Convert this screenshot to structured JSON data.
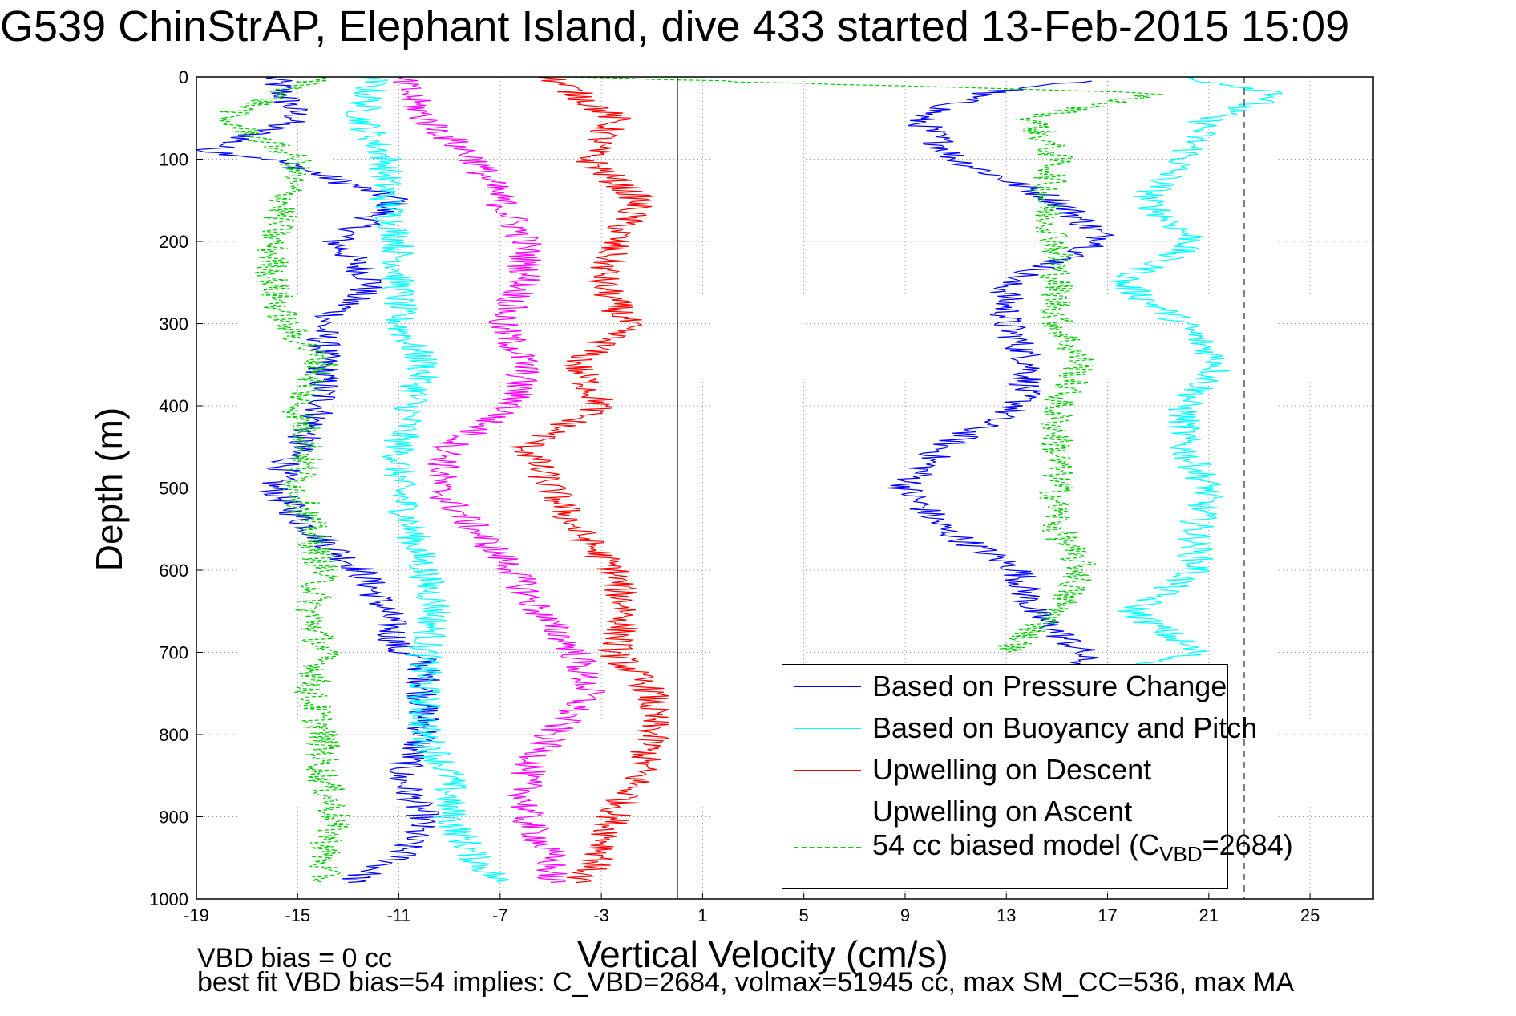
{
  "title": "G539 ChinStrAP, Elephant Island, dive 433 started 13-Feb-2015 15:09",
  "footnote_1": "VBD bias = 0 cc",
  "footnote_2": "best fit VBD bias=54 implies: C_VBD=2684, volmax=51945 cc, max SM_CC=536, max MA",
  "chart_data": {
    "type": "line",
    "xlabel": "Vertical Velocity (cm/s)",
    "ylabel": "Depth (m)",
    "xlim": [
      -19,
      27.5
    ],
    "ylim": [
      1000,
      0
    ],
    "y_inverted": true,
    "x_ticks": [
      -19,
      -15,
      -11,
      -7,
      -3,
      1,
      5,
      9,
      13,
      17,
      21,
      25
    ],
    "y_ticks": [
      0,
      100,
      200,
      300,
      400,
      500,
      600,
      700,
      800,
      900,
      1000
    ],
    "grid": "dotted",
    "reference_lines": [
      {
        "x": 0,
        "style": "solid",
        "color": "#000000"
      },
      {
        "x": 22.4,
        "style": "dashed",
        "color": "#555555"
      }
    ],
    "legend_position": "bottom-right",
    "series": [
      {
        "name": "Based on Pressure Change",
        "color": "#0000ff",
        "style": "solid",
        "depth": [
          0,
          50,
          90,
          100,
          150,
          200,
          250,
          300,
          350,
          400,
          450,
          500,
          550,
          600,
          650,
          700,
          710,
          750,
          800,
          850,
          900,
          950,
          980
        ],
        "values": [
          -16,
          -15,
          -18.5,
          -16,
          -11,
          -13.5,
          -12,
          -14,
          -14,
          -14,
          -15,
          -16,
          -14.5,
          -12.5,
          -11.5,
          -11,
          -10,
          -10,
          -10,
          -11,
          -10,
          -11,
          -13
        ]
      },
      {
        "name": "Based on Pressure Change",
        "color": "#0000ff",
        "style": "solid",
        "depth": [
          5,
          20,
          50,
          100,
          150,
          200,
          250,
          300,
          350,
          400,
          450,
          500,
          550,
          600,
          650,
          700,
          720
        ],
        "values": [
          16,
          12,
          9.5,
          11,
          15,
          17,
          13,
          13,
          14,
          13.5,
          10.5,
          9,
          10.5,
          13.5,
          14,
          16,
          16
        ]
      },
      {
        "name": "Based on Buoyancy and Pitch",
        "color": "#00ffff",
        "style": "solid",
        "depth": [
          0,
          50,
          100,
          150,
          200,
          250,
          300,
          350,
          400,
          450,
          500,
          550,
          600,
          650,
          700,
          750,
          800,
          850,
          900,
          950,
          980
        ],
        "values": [
          -12,
          -12.5,
          -11.5,
          -11.5,
          -11,
          -11,
          -11,
          -10,
          -10.5,
          -11,
          -11,
          -10.5,
          -10,
          -9.5,
          -10,
          -10,
          -10,
          -9,
          -9,
          -8,
          -7
        ]
      },
      {
        "name": "Based on Buoyancy and Pitch",
        "color": "#00ffff",
        "style": "solid",
        "depth": [
          0,
          20,
          50,
          100,
          150,
          200,
          250,
          300,
          350,
          400,
          450,
          500,
          550,
          600,
          650,
          700,
          720
        ],
        "values": [
          20,
          24,
          21,
          20,
          18.5,
          20.5,
          17.5,
          20,
          21.5,
          20,
          20,
          21,
          20.5,
          20.5,
          18,
          20.5,
          18
        ]
      },
      {
        "name": "Upwelling on Descent",
        "color": "#ff0000",
        "style": "solid",
        "depth": [
          0,
          50,
          100,
          150,
          200,
          250,
          300,
          350,
          400,
          450,
          500,
          550,
          600,
          650,
          700,
          750,
          800,
          850,
          900,
          950,
          980
        ],
        "values": [
          -5,
          -2.5,
          -3.5,
          -1.5,
          -2.5,
          -3,
          -2,
          -4,
          -3,
          -6,
          -5,
          -4,
          -2.5,
          -2,
          -2.5,
          -1,
          -1,
          -1.5,
          -2.5,
          -3,
          -4
        ]
      },
      {
        "name": "Upwelling on Ascent",
        "color": "#ff00ff",
        "style": "solid",
        "depth": [
          0,
          50,
          100,
          150,
          200,
          250,
          300,
          350,
          400,
          450,
          500,
          550,
          600,
          650,
          700,
          750,
          800,
          850,
          900,
          950,
          980
        ],
        "values": [
          -11,
          -10,
          -8,
          -7,
          -6,
          -6,
          -7,
          -6,
          -6.5,
          -9,
          -9.5,
          -8,
          -6.5,
          -5.5,
          -4,
          -3.5,
          -5,
          -6,
          -6,
          -5,
          -5
        ]
      },
      {
        "name": "54 cc biased model (C_VBD=2684)",
        "color": "#00cc00",
        "style": "dashed",
        "depth": [
          0,
          50,
          100,
          150,
          200,
          250,
          300,
          350,
          400,
          450,
          500,
          550,
          600,
          650,
          700,
          750,
          800,
          850,
          900,
          950,
          980
        ],
        "values": [
          -14,
          -18,
          -15,
          -15.5,
          -16,
          -16,
          -15.5,
          -14,
          -15,
          -14.5,
          -15,
          -14.5,
          -14,
          -14.5,
          -14,
          -14.5,
          -14,
          -14,
          -13.5,
          -14,
          -14
        ]
      },
      {
        "name": "54 cc biased model (C_VBD=2684)",
        "color": "#00cc00",
        "style": "dashed",
        "depth": [
          0,
          20,
          50,
          100,
          150,
          200,
          250,
          300,
          350,
          400,
          450,
          500,
          550,
          600,
          650,
          700
        ],
        "values": [
          -4,
          19,
          14,
          15,
          14.5,
          15,
          15,
          15,
          16,
          15,
          15,
          15,
          15,
          16,
          15,
          13
        ]
      }
    ],
    "legend": [
      {
        "label": "Based on Pressure Change",
        "color": "#0000ff",
        "style": "solid"
      },
      {
        "label": "Based on Buoyancy and Pitch",
        "color": "#00ffff",
        "style": "solid"
      },
      {
        "label": "Upwelling on Descent",
        "color": "#ff0000",
        "style": "solid"
      },
      {
        "label": "Upwelling on Ascent",
        "color": "#ff00ff",
        "style": "solid"
      },
      {
        "label": "54 cc biased model (C",
        "label_sub": "VBD",
        "label_suffix": "=2684)",
        "color": "#00cc00",
        "style": "dashed"
      }
    ]
  }
}
